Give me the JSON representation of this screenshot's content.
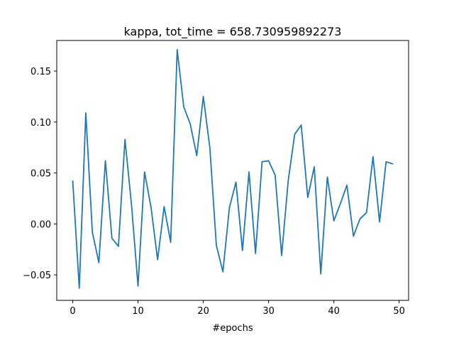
{
  "chart_data": {
    "type": "line",
    "title": "kappa, tot_time = 658.730959892273",
    "xlabel": "#epochs",
    "ylabel": "",
    "xlim": [
      -2.45,
      51.45
    ],
    "ylim": [
      -0.075,
      0.18
    ],
    "xticks": [
      0,
      10,
      20,
      30,
      40,
      50
    ],
    "xtick_labels": [
      "0",
      "10",
      "20",
      "30",
      "40",
      "50"
    ],
    "yticks": [
      -0.05,
      0.0,
      0.05,
      0.1,
      0.15
    ],
    "ytick_labels": [
      "−0.05",
      "0.00",
      "0.05",
      "0.10",
      "0.15"
    ],
    "grid": false,
    "legend": "none",
    "series": [
      {
        "color": "#1f77b4",
        "x": [
          0,
          1,
          2,
          3,
          4,
          5,
          6,
          7,
          8,
          9,
          10,
          11,
          12,
          13,
          14,
          15,
          16,
          17,
          18,
          19,
          20,
          21,
          22,
          23,
          24,
          25,
          26,
          27,
          28,
          29,
          30,
          31,
          32,
          33,
          34,
          35,
          36,
          37,
          38,
          39,
          40,
          41,
          42,
          43,
          44,
          45,
          46,
          47,
          48,
          49
        ],
        "y": [
          0.042,
          -0.063,
          0.109,
          -0.008,
          -0.038,
          0.062,
          -0.014,
          -0.022,
          0.083,
          0.019,
          -0.061,
          0.051,
          0.016,
          -0.035,
          0.017,
          -0.018,
          0.171,
          0.115,
          0.098,
          0.067,
          0.125,
          0.075,
          -0.021,
          -0.047,
          0.016,
          0.041,
          -0.026,
          0.051,
          -0.029,
          0.061,
          0.062,
          0.048,
          -0.031,
          0.042,
          0.088,
          0.097,
          0.026,
          0.056,
          -0.049,
          0.046,
          0.003,
          0.02,
          0.038,
          -0.012,
          0.005,
          0.011,
          0.066,
          0.002,
          0.061,
          0.059
        ]
      }
    ]
  }
}
